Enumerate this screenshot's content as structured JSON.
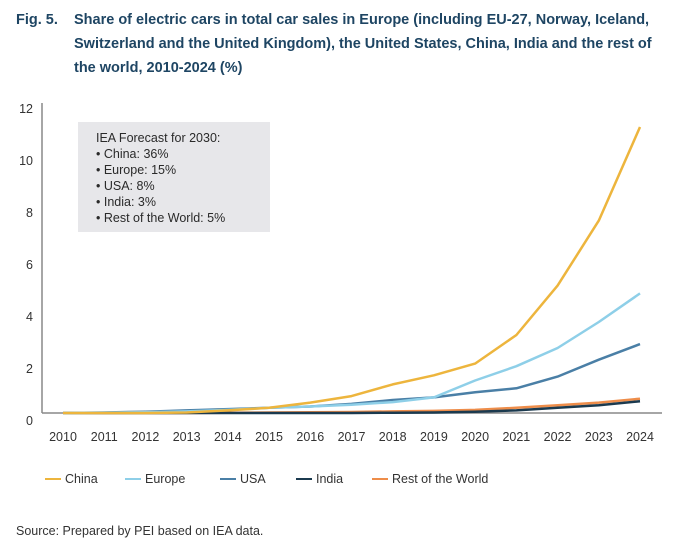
{
  "figure": {
    "label": "Fig. 5.",
    "title": "Share of electric cars in total car sales in Europe (including EU-27, Norway, Iceland, Switzerland and the United Kingdom), the United States, China, India and the rest of the world, 2010-2024 (%)"
  },
  "forecast_box": {
    "title": "IEA Forecast for 2030:",
    "items": [
      "• China: 36%",
      "• Europe: 15%",
      "• USA: 8%",
      "• India: 3%",
      "• Rest of the World: 5%"
    ]
  },
  "source": "Source: Prepared by PEI based on IEA data.",
  "chart_data": {
    "type": "line",
    "title": "Share of electric cars in total car sales in Europe (including EU-27, Norway, Iceland, Switzerland and the United Kingdom), the United States, China, India and the rest of the world, 2010-2024 (%)",
    "xlabel": "",
    "ylabel": "",
    "x": [
      "2010",
      "2011",
      "2012",
      "2013",
      "2014",
      "2015",
      "2016",
      "2017",
      "2018",
      "2019",
      "2020",
      "2021",
      "2022",
      "2023",
      "2024"
    ],
    "ylim": [
      0,
      12
    ],
    "yticks": [
      "0",
      "2",
      "4",
      "6",
      "8",
      "10",
      "12"
    ],
    "grid": false,
    "legend_position": "bottom",
    "series": [
      {
        "name": "China",
        "color": "#edb53d",
        "values": [
          0.0,
          0.0,
          0.0,
          0.02,
          0.1,
          0.2,
          0.4,
          0.65,
          1.1,
          1.45,
          1.9,
          3.0,
          4.9,
          7.4,
          11.0
        ]
      },
      {
        "name": "Europe",
        "color": "#8ecfe8",
        "values": [
          0.0,
          0.01,
          0.03,
          0.06,
          0.12,
          0.2,
          0.25,
          0.32,
          0.42,
          0.6,
          1.25,
          1.8,
          2.5,
          3.5,
          4.6
        ]
      },
      {
        "name": "USA",
        "color": "#4a7fa6",
        "values": [
          0.0,
          0.02,
          0.05,
          0.1,
          0.15,
          0.2,
          0.25,
          0.35,
          0.5,
          0.6,
          0.8,
          0.95,
          1.4,
          2.05,
          2.65
        ]
      },
      {
        "name": "India",
        "color": "#1b3a4f",
        "values": [
          0.0,
          0.0,
          0.0,
          0.0,
          0.0,
          0.0,
          0.0,
          0.0,
          0.01,
          0.02,
          0.05,
          0.1,
          0.2,
          0.3,
          0.45
        ]
      },
      {
        "name": "Rest of the World",
        "color": "#ee8d4a",
        "values": [
          0.0,
          0.0,
          0.0,
          0.0,
          0.01,
          0.02,
          0.03,
          0.04,
          0.06,
          0.08,
          0.12,
          0.2,
          0.3,
          0.4,
          0.55
        ]
      }
    ]
  }
}
